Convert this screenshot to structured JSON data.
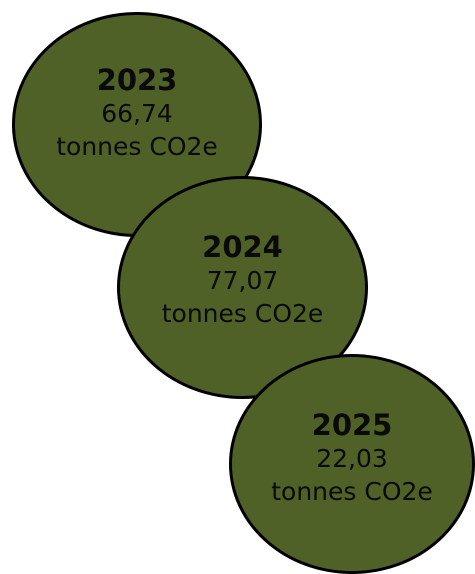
{
  "colors": {
    "bubble_fill": "#4f6127",
    "bubble_border": "#000000",
    "text": "#0a0a0a",
    "background": "#ffffff"
  },
  "bubbles": [
    {
      "year": "2023",
      "value": "66,74",
      "unit": "tonnes CO2e"
    },
    {
      "year": "2024",
      "value": "77,07",
      "unit": "tonnes CO2e"
    },
    {
      "year": "2025",
      "value": "22,03",
      "unit": "tonnes CO2e"
    }
  ]
}
